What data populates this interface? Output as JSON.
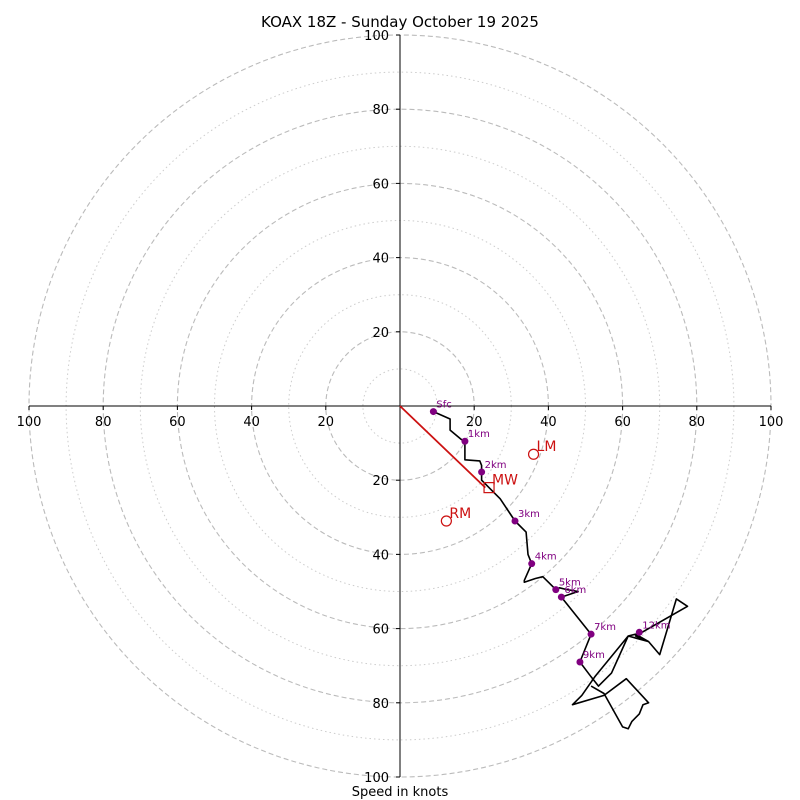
{
  "chart_data": {
    "type": "hodograph",
    "title": "KOAX 18Z - Sunday October 19 2025",
    "xlabel": "Speed in knots",
    "axis_range": [
      -100,
      100
    ],
    "ticks": [
      {
        "value": -100,
        "label": "100"
      },
      {
        "value": -80,
        "label": "80"
      },
      {
        "value": -60,
        "label": "60"
      },
      {
        "value": -40,
        "label": "40"
      },
      {
        "value": -20,
        "label": "20"
      },
      {
        "value": 20,
        "label": "20"
      },
      {
        "value": 40,
        "label": "40"
      },
      {
        "value": 60,
        "label": "60"
      },
      {
        "value": 80,
        "label": "80"
      },
      {
        "value": 100,
        "label": "100"
      }
    ],
    "rings_dashed": [
      20,
      40,
      60,
      80,
      100
    ],
    "rings_dotted": [
      10,
      30,
      50,
      70,
      90
    ],
    "colors": {
      "trace": "#000000",
      "points": "#800080",
      "motion": "#cc1111",
      "grid": "#bbbbbb"
    },
    "trace": [
      [
        9,
        -1.5
      ],
      [
        13.5,
        -3.5
      ],
      [
        13.5,
        -6.5
      ],
      [
        16.5,
        -9
      ],
      [
        17.5,
        -9.5
      ],
      [
        17.5,
        -14.5
      ],
      [
        21.5,
        -14.8
      ],
      [
        22,
        -16
      ],
      [
        22,
        -20
      ],
      [
        27,
        -25
      ],
      [
        31,
        -31
      ],
      [
        34,
        -34
      ],
      [
        34.5,
        -40
      ],
      [
        35.5,
        -42.5
      ],
      [
        33.5,
        -47
      ],
      [
        33.5,
        -47.5
      ],
      [
        36.5,
        -46.5
      ],
      [
        38.5,
        -46
      ],
      [
        40,
        -47.5
      ],
      [
        42,
        -49.5
      ],
      [
        43,
        -49
      ],
      [
        45,
        -49.5
      ],
      [
        48,
        -50
      ],
      [
        46.5,
        -50.5
      ],
      [
        43.5,
        -51.5
      ],
      [
        51.5,
        -61.5
      ],
      [
        48.5,
        -69
      ],
      [
        51.5,
        -73
      ],
      [
        53.5,
        -75.5
      ],
      [
        57,
        -72
      ],
      [
        61.5,
        -62
      ],
      [
        63.5,
        -61.5
      ],
      [
        67,
        -63.5
      ],
      [
        70,
        -67
      ],
      [
        74.5,
        -52
      ],
      [
        77.5,
        -54
      ],
      [
        63.5,
        -62
      ],
      [
        67,
        -63.5
      ],
      [
        61.5,
        -62
      ],
      [
        52.5,
        -73
      ],
      [
        49,
        -78
      ],
      [
        46.5,
        -80.5
      ],
      [
        55,
        -78
      ],
      [
        61,
        -73.5
      ],
      [
        67,
        -80
      ],
      [
        65.5,
        -80.5
      ],
      [
        64.5,
        -83
      ],
      [
        62.5,
        -85
      ],
      [
        61.5,
        -87
      ],
      [
        60,
        -86.5
      ],
      [
        55,
        -77.5
      ],
      [
        51.5,
        -75.5
      ]
    ],
    "height_points": [
      {
        "label": "Sfc",
        "u": 9,
        "v": -1.5
      },
      {
        "label": "1km",
        "u": 17.5,
        "v": -9.5
      },
      {
        "label": "2km",
        "u": 22,
        "v": -17.8
      },
      {
        "label": "3km",
        "u": 31,
        "v": -31
      },
      {
        "label": "4km",
        "u": 35.5,
        "v": -42.5
      },
      {
        "label": "5km",
        "u": 42,
        "v": -49.5
      },
      {
        "label": "6km",
        "u": 43.5,
        "v": -51.5
      },
      {
        "label": "7km",
        "u": 51.5,
        "v": -61.5
      },
      {
        "label": "9km",
        "u": 48.5,
        "v": -69
      },
      {
        "label": "12km",
        "u": 64.5,
        "v": -61
      }
    ],
    "mean_wind_line": {
      "from": [
        0,
        0
      ],
      "to": [
        23,
        -22
      ]
    },
    "storm_motions": [
      {
        "label": "LM",
        "marker": "circle",
        "u": 36,
        "v": -13
      },
      {
        "label": "MW",
        "marker": "square",
        "u": 24,
        "v": -22
      },
      {
        "label": "RM",
        "marker": "circle",
        "u": 12.5,
        "v": -31
      }
    ]
  }
}
